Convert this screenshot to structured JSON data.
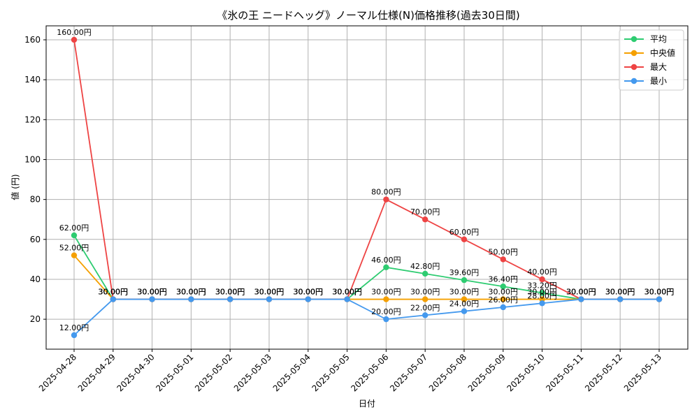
{
  "chart_data": {
    "type": "line",
    "title": "《氷の王 ニードヘッグ》ノーマル仕様(N)価格推移(過去30日間)",
    "xlabel": "日付",
    "ylabel": "値 (円)",
    "ylim": [
      5,
      167
    ],
    "yticks": [
      20,
      40,
      60,
      80,
      100,
      120,
      140,
      160
    ],
    "grid": true,
    "legend_position": "top-right",
    "categories": [
      "2025-04-28",
      "2025-04-29",
      "2025-04-30",
      "2025-05-01",
      "2025-05-02",
      "2025-05-03",
      "2025-05-04",
      "2025-05-05",
      "2025-05-06",
      "2025-05-07",
      "2025-05-08",
      "2025-05-09",
      "2025-05-10",
      "2025-05-11",
      "2025-05-12",
      "2025-05-13"
    ],
    "series": [
      {
        "name": "平均",
        "color": "#2ecc71",
        "values": [
          62,
          30,
          30,
          30,
          30,
          30,
          30,
          30,
          46,
          42.8,
          39.6,
          36.4,
          33.2,
          30,
          30,
          30
        ],
        "labels": [
          "62.00円",
          "30.00円",
          "30.00円",
          "30.00円",
          "30.00円",
          "30.00円",
          "30.00円",
          "30.00円",
          "46.00円",
          "42.80円",
          "39.60円",
          "36.40円",
          "33.20円",
          "30.00円",
          "30.00円",
          "30.00円"
        ]
      },
      {
        "name": "中央値",
        "color": "#f5a000",
        "values": [
          52,
          30,
          30,
          30,
          30,
          30,
          30,
          30,
          30,
          30,
          30,
          30,
          30,
          30,
          30,
          30
        ],
        "labels": [
          "52.00円",
          "30.00円",
          "30.00円",
          "30.00円",
          "30.00円",
          "30.00円",
          "30.00円",
          "30.00円",
          "30.00円",
          "30.00円",
          "30.00円",
          "30.00円",
          "30.00円",
          "30.00円",
          "30.00円",
          "30.00円"
        ]
      },
      {
        "name": "最大",
        "color": "#ee4444",
        "values": [
          160,
          30,
          30,
          30,
          30,
          30,
          30,
          30,
          80,
          70,
          60,
          50,
          40,
          30,
          30,
          30
        ],
        "labels": [
          "160.00円",
          "30.00円",
          "30.00円",
          "30.00円",
          "30.00円",
          "30.00円",
          "30.00円",
          "30.00円",
          "80.00円",
          "70.00円",
          "60.00円",
          "50.00円",
          "40.00円",
          "30.00円",
          "30.00円",
          "30.00円"
        ]
      },
      {
        "name": "最小",
        "color": "#4499ee",
        "values": [
          12,
          30,
          30,
          30,
          30,
          30,
          30,
          30,
          20,
          22,
          24,
          26,
          28,
          30,
          30,
          30
        ],
        "labels": [
          "12.00円",
          "30.00円",
          "30.00円",
          "30.00円",
          "30.00円",
          "30.00円",
          "30.00円",
          "30.00円",
          "20.00円",
          "22.00円",
          "24.00円",
          "26.00円",
          "28.00円",
          "30.00円",
          "30.00円",
          "30.00円"
        ]
      }
    ]
  }
}
